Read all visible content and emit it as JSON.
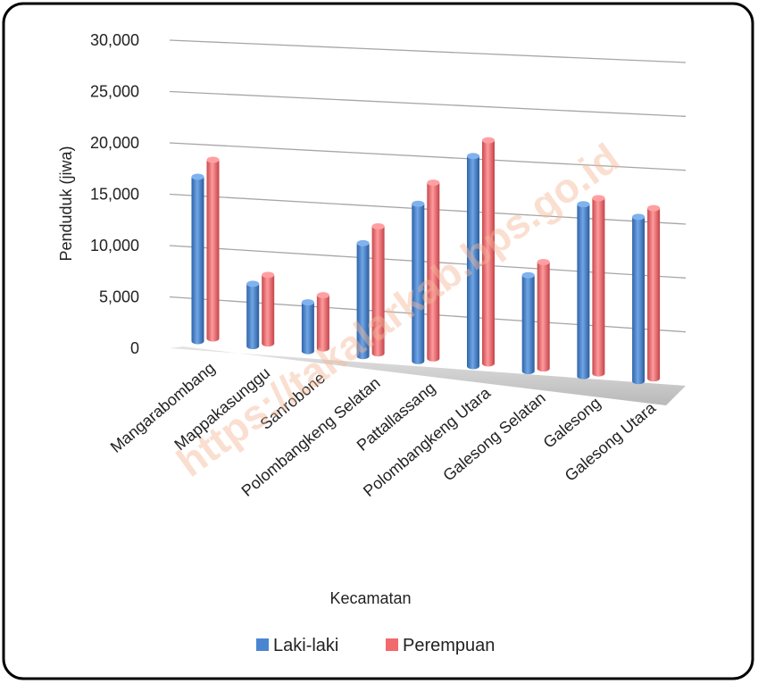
{
  "chart_data": {
    "type": "bar",
    "style": "3d-clustered-column",
    "title": "",
    "xlabel": "Kecamatan",
    "ylabel": "Penduduk (jiwa)",
    "ylim": [
      0,
      30000
    ],
    "ytick_labels": [
      "0",
      "5,000",
      "10,000",
      "15,000",
      "20,000",
      "25,000",
      "30,000"
    ],
    "yticks": [
      0,
      5000,
      10000,
      15000,
      20000,
      25000,
      30000
    ],
    "categories": [
      "Mangarabombang",
      "Mappakasunggu",
      "Sanrobone",
      "Polombangkeng Selatan",
      "Pattallassang",
      "Polombangkeng Utara",
      "Galesong Selatan",
      "Galesong",
      "Galesong Utara"
    ],
    "series": [
      {
        "name": "Laki-laki",
        "color": "#4a86d0",
        "values": [
          18400,
          7000,
          5500,
          12800,
          17900,
          24000,
          11000,
          19800,
          19000
        ]
      },
      {
        "name": "Perempuan",
        "color": "#f06a6e",
        "values": [
          20000,
          7700,
          6000,
          14400,
          20000,
          25500,
          12200,
          20200,
          19700
        ]
      }
    ],
    "legend_position": "bottom",
    "grid": true,
    "watermark": "https://takalarkab.bps.go.id"
  }
}
